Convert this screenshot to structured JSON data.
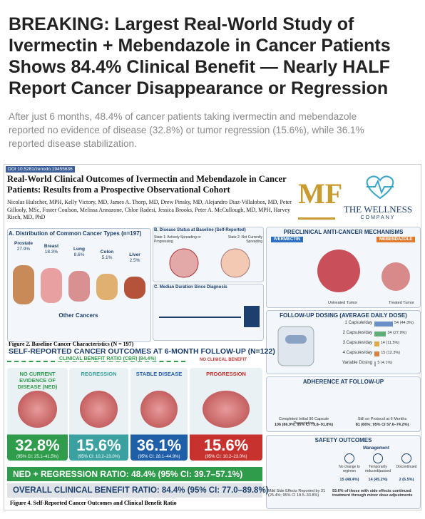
{
  "header": {
    "title_lines": [
      "BREAKING: Largest Real-World Study of",
      "Ivermectin + Mebendazole in Cancer Patients",
      "Shows 84.4% Clinical Benefit — Nearly HALF",
      "Report Cancer Disappearance or Regression"
    ],
    "subtitle_lines": [
      "After just 6 months, 48.4% of cancer patients taking ivermectin and mebendazole",
      "reported no evidence of disease (32.8%) or tumor regression (15.6%), while 36.1%",
      "reported disease stabilization."
    ]
  },
  "infographic": {
    "doi": "DOI 10.5281/zenodo.19455636",
    "paper_title": "Real-World Clinical Outcomes of Ivermectin and Mebendazole in Cancer Patients: Results from a Prospective Observational Cohort",
    "authors": "Nicolas Hulscher, MPH, Kelly Victory, MD, James A. Thorp, MD, Drew Pinsky, MD, Alejandro Diaz-Villalobos, MD, Peter Gillooly, MSc, Foster Coulson, Melissa Annazone, Chloe Radesi, Jessica Brooks, Peter A. McCullough, MD, MPH, Harvey Risch, MD, PhD",
    "logo": "MF",
    "brand": "THE WELLNESS",
    "brand_sub": "COMPANY",
    "panel_a": {
      "title": "A. Distribution of Common Cancer Types (n=197)",
      "cancers": [
        {
          "name": "Prostate",
          "pct": "27.9%"
        },
        {
          "name": "Breast",
          "pct": "18.3%"
        },
        {
          "name": "Lung",
          "pct": "8.6%"
        },
        {
          "name": "Colon",
          "pct": "5.1%"
        },
        {
          "name": "Liver",
          "pct": "2.5%"
        }
      ],
      "other": "Other Cancers"
    },
    "panel_b": {
      "title": "B. Disease Status at Baseline (Self-Reported)",
      "state1": "State 1: Actively Spreading or Progressing",
      "state2": "State 2: Not Currently Spreading"
    },
    "panel_c": {
      "title": "C. Median Duration Since Diagnosis"
    },
    "figure2": "Figure 2. Baseline Cancer Characteristics (N = 197)",
    "mechanisms": {
      "title": "PRECLINICAL ANTI-CANCER MECHANISMS",
      "drug1": "IVERMECTIN",
      "drug2": "MEBENDAZOLE",
      "untreated": "Untreated Tumor",
      "treated": "Treated Tumor"
    },
    "dosing": {
      "title": "FOLLOW-UP DOSING (AVERAGE DAILY DOSE)",
      "rows": [
        {
          "label": "1 Capsule/day",
          "count": 54,
          "value_label": "54 (44.3%)"
        },
        {
          "label": "2 Capsules/day",
          "count": 34,
          "value_label": "34 (27.9%)"
        },
        {
          "label": "3 Capsules/day",
          "count": 14,
          "value_label": "14 (11.5%)"
        },
        {
          "label": "4 Capsules/day",
          "count": 15,
          "value_label": "15 (12.3%)"
        },
        {
          "label": "Variable Dosing",
          "count": 5,
          "value_label": "5 (4.1%)"
        }
      ]
    },
    "adherence": {
      "title": "ADHERENCE AT FOLLOW-UP",
      "item1": "Completed Initial 90 Capsule Prescription",
      "value1": "106 (86.9%; 95% CI 79.8–91.8%)",
      "item2": "Still on Protocol at 6 Months",
      "value2": "81 (66%; 95% CI 57.6–74.2%)"
    },
    "safety": {
      "title": "SAFETY OUTCOMES",
      "management": "Management",
      "options": [
        {
          "label": "No change to regimen",
          "value": "15 (48.4%)"
        },
        {
          "label": "Temporarily reduced/paused",
          "value": "14 (45.2%)"
        },
        {
          "label": "Discontinued",
          "value": "2 (6.5%)"
        }
      ],
      "mild": "Mild Side Effects Reported by 31 (25.4%; 95% CI 18.5–33.8%)",
      "continued": "93.6% of those with side effects continued treatment through minor dose adjustments"
    },
    "outcomes": {
      "title": "SELF-REPORTED CANCER OUTCOMES AT 6-MONTH FOLLOW-UP (N=122)",
      "cbr_label": "CLINICAL BENEFIT RATIO (CBR) (84.4%)",
      "no_benefit": "NO CLINICAL BENEFIT",
      "cards": [
        {
          "label": "NO CURRENT EVIDENCE OF DISEASE (NED)",
          "value": "32.8%",
          "ci": "(95% CI: 25.1–41.5%)"
        },
        {
          "label": "REGRESSION",
          "value": "15.6%",
          "ci": "(95% CI: 10.2–23.0%)"
        },
        {
          "label": "STABLE DISEASE",
          "value": "36.1%",
          "ci": "(95% CI: 28.1–44.9%)"
        },
        {
          "label": "PROGRESSION",
          "value": "15.6%",
          "ci": "(95% CI: 10.2–23.0%)"
        }
      ],
      "ned_ratio": "NED + REGRESSION RATIO: 48.4% (95% CI: 39.7–57.1%)",
      "overall": "OVERALL CLINICAL BENEFIT RATIO: 84.4% (95% CI: 77.0–89.8%)"
    },
    "figure4": "Figure 4. Self-Reported Cancer Outcomes and Clinical Benefit Ratio"
  }
}
